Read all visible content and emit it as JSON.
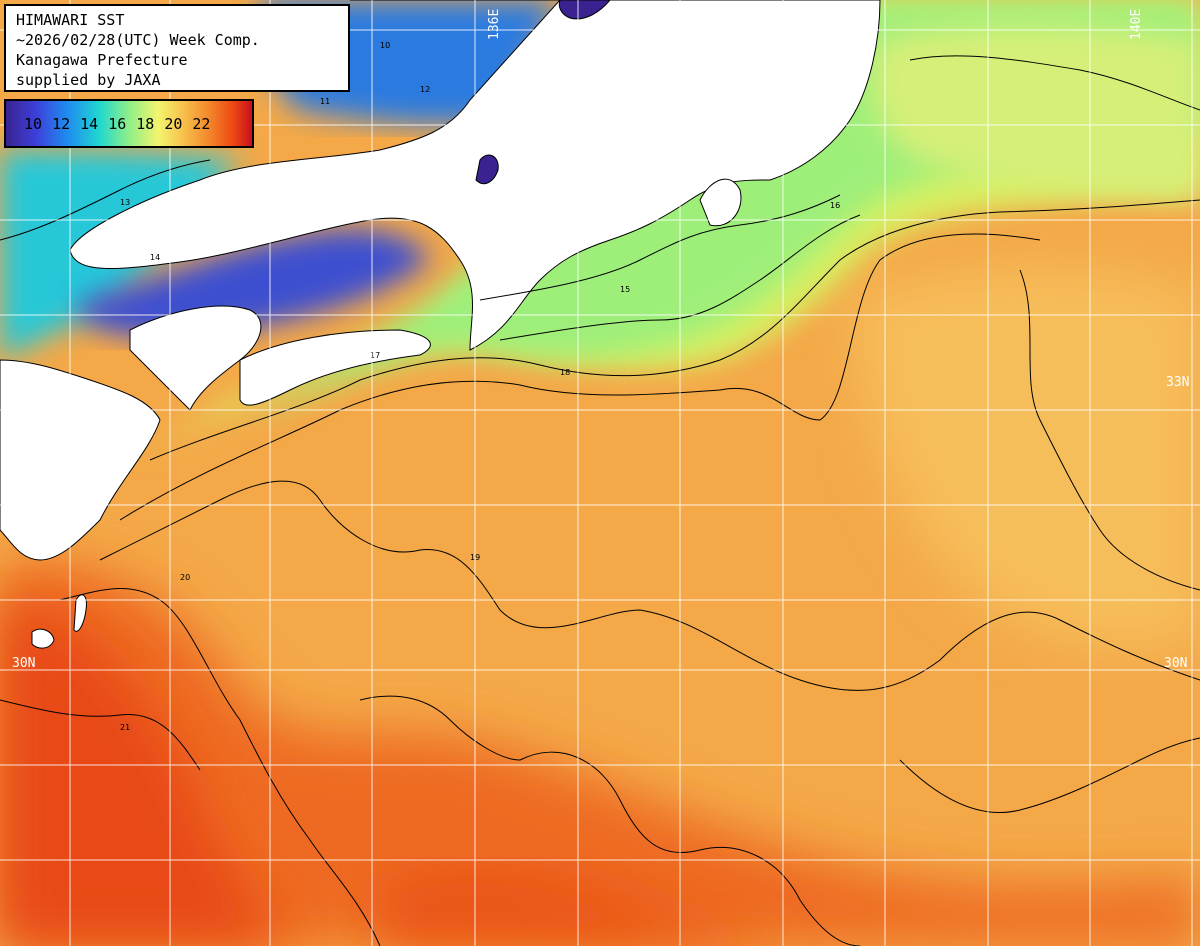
{
  "header": {
    "lines": [
      "HIMAWARI SST",
      "~2026/02/28(UTC) Week Comp.",
      "Kanagawa Prefecture",
      "supplied by JAXA"
    ]
  },
  "legend": {
    "labels": [
      "10",
      "12",
      "14",
      "16",
      "18",
      "20",
      "22"
    ],
    "stops": [
      {
        "t": 0.0,
        "color": "#3a2390"
      },
      {
        "t": 0.12,
        "color": "#3d3fd8"
      },
      {
        "t": 0.25,
        "color": "#1f8cf0"
      },
      {
        "t": 0.38,
        "color": "#21d7d0"
      },
      {
        "t": 0.5,
        "color": "#8fef88"
      },
      {
        "t": 0.62,
        "color": "#f3f46e"
      },
      {
        "t": 0.72,
        "color": "#f7c14c"
      },
      {
        "t": 0.82,
        "color": "#f38a2c"
      },
      {
        "t": 0.92,
        "color": "#ef4a14"
      },
      {
        "t": 1.0,
        "color": "#c8101c"
      }
    ]
  },
  "grid_labels": {
    "lon_left": "136E",
    "lon_right": "140E",
    "lat_upper_right": "33N",
    "lat_lower_left": "30N",
    "lat_lower_right": "30N"
  },
  "contour_labels": [
    "10",
    "11",
    "12",
    "13",
    "14",
    "15",
    "16",
    "17",
    "18",
    "19",
    "20",
    "21"
  ],
  "colors": {
    "land": "#ffffff",
    "grid": "#ffffff",
    "contour": "#000000",
    "water_warm": "#f07a28",
    "water_mid": "#f4a848",
    "water_cool": "#b8f070",
    "water_cold": "#3c9ad8"
  }
}
